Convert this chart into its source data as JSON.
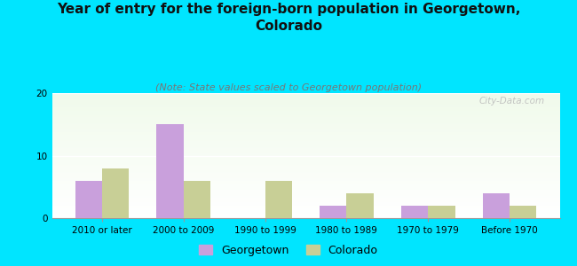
{
  "title": "Year of entry for the foreign-born population in Georgetown,\nColorado",
  "subtitle": "(Note: State values scaled to Georgetown population)",
  "categories": [
    "2010 or later",
    "2000 to 2009",
    "1990 to 1999",
    "1980 to 1989",
    "1970 to 1979",
    "Before 1970"
  ],
  "georgetown_values": [
    6,
    15,
    0,
    2,
    2,
    4
  ],
  "colorado_values": [
    8,
    6,
    6,
    4,
    2,
    2
  ],
  "georgetown_color": "#c9a0dc",
  "colorado_color": "#c8cf96",
  "ylim": [
    0,
    20
  ],
  "yticks": [
    0,
    10,
    20
  ],
  "background_color": "#00e5ff",
  "watermark": "City-Data.com",
  "legend_georgetown": "Georgetown",
  "legend_colorado": "Colorado",
  "title_fontsize": 11,
  "subtitle_fontsize": 8,
  "tick_fontsize": 7.5,
  "legend_fontsize": 9
}
